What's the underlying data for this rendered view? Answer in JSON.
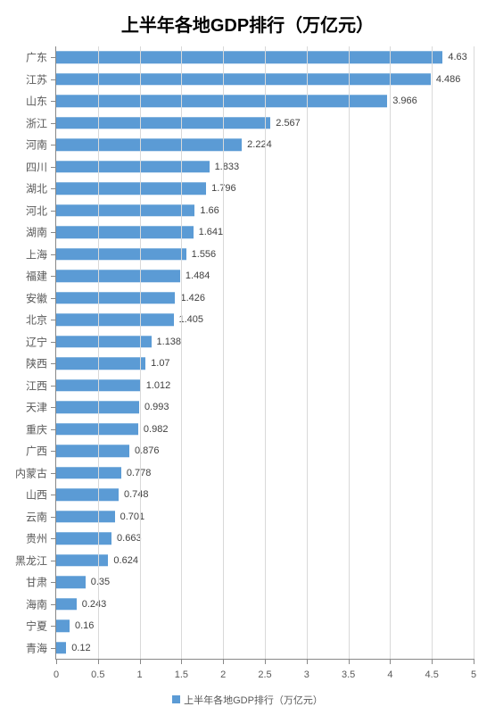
{
  "chart": {
    "type": "bar-horizontal",
    "title": "上半年各地GDP排行（万亿元）",
    "title_fontsize": 20,
    "title_color": "#000000",
    "background_color": "#ffffff",
    "plot_background": "#ffffff",
    "bar_color": "#5b9bd5",
    "grid_color": "#d9d9d9",
    "axis_color": "#888888",
    "label_color": "#595959",
    "value_label_color": "#404040",
    "cat_label_fontsize": 12,
    "value_label_fontsize": 11,
    "tick_label_fontsize": 11,
    "bar_height_ratio": 0.55,
    "xaxis": {
      "min": 0,
      "max": 5,
      "tick_step": 0.5,
      "ticks": [
        0,
        0.5,
        1,
        1.5,
        2,
        2.5,
        3,
        3.5,
        4,
        4.5,
        5
      ]
    },
    "categories": [
      "广东",
      "江苏",
      "山东",
      "浙江",
      "河南",
      "四川",
      "湖北",
      "河北",
      "湖南",
      "上海",
      "福建",
      "安徽",
      "北京",
      "辽宁",
      "陕西",
      "江西",
      "天津",
      "重庆",
      "广西",
      "内蒙古",
      "山西",
      "云南",
      "贵州",
      "黑龙江",
      "甘肃",
      "海南",
      "宁夏",
      "青海"
    ],
    "values": [
      4.63,
      4.486,
      3.966,
      2.567,
      2.224,
      1.833,
      1.796,
      1.66,
      1.641,
      1.556,
      1.484,
      1.426,
      1.405,
      1.138,
      1.07,
      1.012,
      0.993,
      0.982,
      0.876,
      0.778,
      0.748,
      0.701,
      0.663,
      0.624,
      0.35,
      0.243,
      0.16,
      0.12
    ],
    "legend": {
      "label": "上半年各地GDP排行（万亿元）",
      "swatch_color": "#5b9bd5",
      "fontsize": 11,
      "text_color": "#595959"
    }
  }
}
